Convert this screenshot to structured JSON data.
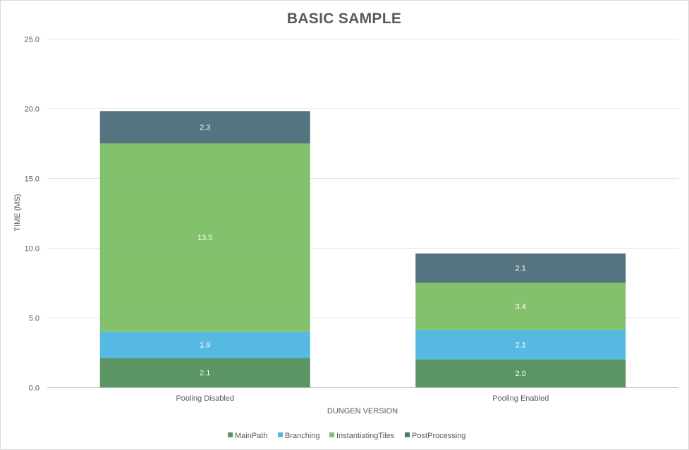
{
  "chart_data": {
    "type": "bar",
    "stacked": true,
    "title": "BASIC SAMPLE",
    "xlabel": "DUNGEN VERSION",
    "ylabel": "TIME (MS)",
    "ylim": [
      0,
      25
    ],
    "yticks": [
      "0.0",
      "5.0",
      "10.0",
      "15.0",
      "20.0",
      "25.0"
    ],
    "grid": true,
    "legend_position": "bottom",
    "categories": [
      "Pooling Disabled",
      "Pooling Enabled"
    ],
    "series": [
      {
        "name": "MainPath",
        "color": "#5b9563",
        "values": [
          2.1,
          2.0
        ],
        "labels": [
          "2.1",
          "2.0"
        ]
      },
      {
        "name": "Branching",
        "color": "#56b9e1",
        "values": [
          1.9,
          2.1
        ],
        "labels": [
          "1.9",
          "2.1"
        ]
      },
      {
        "name": "InstantiatingTiles",
        "color": "#83c16d",
        "values": [
          13.5,
          3.4
        ],
        "labels": [
          "13.5",
          "3.4"
        ]
      },
      {
        "name": "PostProcessing",
        "color": "#55747f",
        "values": [
          2.3,
          2.1
        ],
        "labels": [
          "2.3",
          "2.1"
        ]
      }
    ]
  }
}
